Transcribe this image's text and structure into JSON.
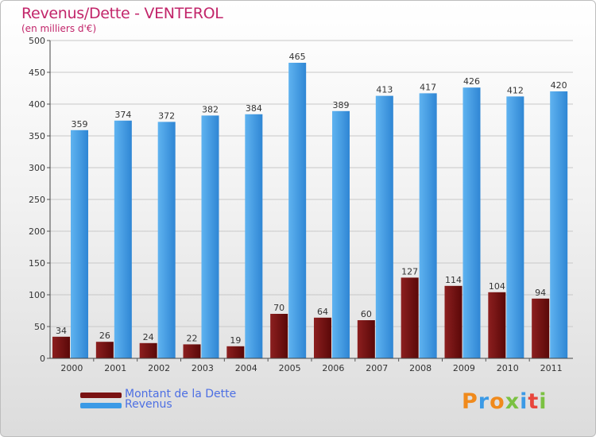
{
  "title": "Revenus/Dette - VENTEROL",
  "subtitle": "(en milliers d'€)",
  "colors": {
    "title": "#c2256a",
    "debt": "#7a1212",
    "revenue": "#3b9ae6",
    "legend_text": "#4d6fe3"
  },
  "legend": {
    "debt_label": "Montant de la Dette",
    "revenue_label": "Revenus"
  },
  "logo": {
    "text": "Proxiti"
  },
  "chart_data": {
    "type": "bar",
    "categories": [
      "2000",
      "2001",
      "2002",
      "2003",
      "2004",
      "2005",
      "2006",
      "2007",
      "2008",
      "2009",
      "2010",
      "2011"
    ],
    "series": [
      {
        "name": "Montant de la Dette",
        "values": [
          34,
          26,
          24,
          22,
          19,
          70,
          64,
          60,
          127,
          114,
          104,
          94
        ]
      },
      {
        "name": "Revenus",
        "values": [
          359,
          374,
          372,
          382,
          384,
          465,
          389,
          413,
          417,
          426,
          412,
          420
        ]
      }
    ],
    "ylim": [
      0,
      500
    ],
    "yticks": [
      0,
      50,
      100,
      150,
      200,
      250,
      300,
      350,
      400,
      450,
      500
    ],
    "grid": true,
    "legend_position": "bottom-left"
  }
}
